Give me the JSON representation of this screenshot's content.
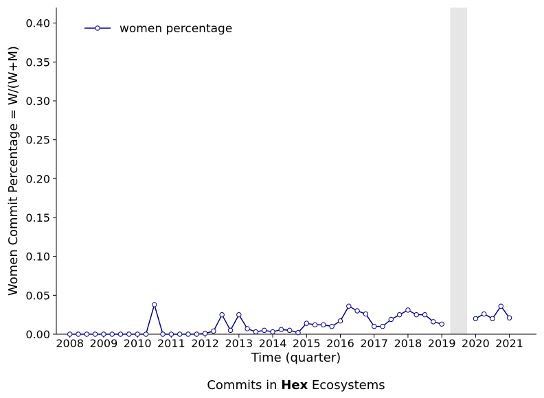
{
  "chart_data": {
    "type": "line",
    "title": "",
    "caption": {
      "prefix": "Commits in ",
      "bold": "Hex",
      "suffix": " Ecosystems"
    },
    "xlabel": "Time (quarter)",
    "ylabel": "Women Commit Percentage = W/(W+M)",
    "xlim": [
      2007.6,
      2021.8
    ],
    "ylim": [
      0.0,
      0.42
    ],
    "x_ticks": [
      2008,
      2009,
      2010,
      2011,
      2012,
      2013,
      2014,
      2015,
      2016,
      2017,
      2018,
      2019,
      2020,
      2021
    ],
    "x_tick_labels": [
      "2008",
      "2009",
      "2010",
      "2011",
      "2012",
      "2013",
      "2014",
      "2015",
      "2016",
      "2017",
      "2018",
      "2019",
      "2020",
      "2021"
    ],
    "y_ticks": [
      0.0,
      0.05,
      0.1,
      0.15,
      0.2,
      0.25,
      0.3,
      0.35,
      0.4
    ],
    "y_tick_labels": [
      "0.00",
      "0.05",
      "0.10",
      "0.15",
      "0.20",
      "0.25",
      "0.30",
      "0.35",
      "0.40"
    ],
    "grid": false,
    "legend": {
      "position": "top-left",
      "entries": [
        "women percentage"
      ]
    },
    "shaded_region": {
      "x_start": 2019.25,
      "x_end": 2019.75,
      "color": "#e6e6e6"
    },
    "series": [
      {
        "name": "women percentage",
        "color": "#00008b",
        "marker": "open-circle",
        "segments": [
          {
            "x": [
              2008.0,
              2008.25,
              2008.5,
              2008.75,
              2009.0,
              2009.25,
              2009.5,
              2009.75,
              2010.0,
              2010.25,
              2010.5,
              2010.75,
              2011.0,
              2011.25,
              2011.5,
              2011.75,
              2012.0,
              2012.25,
              2012.5,
              2012.75,
              2013.0,
              2013.25,
              2013.5,
              2013.75,
              2014.0,
              2014.25,
              2014.5,
              2014.75,
              2015.0,
              2015.25,
              2015.5,
              2015.75,
              2016.0,
              2016.25,
              2016.5,
              2016.75,
              2017.0,
              2017.25,
              2017.5,
              2017.75,
              2018.0,
              2018.25,
              2018.5,
              2018.75,
              2019.0
            ],
            "y": [
              0.0,
              0.0,
              0.0,
              0.0,
              0.0,
              0.0,
              0.0,
              0.0,
              0.0,
              0.0,
              0.038,
              0.0,
              0.0,
              0.0,
              0.0,
              0.0,
              0.001,
              0.004,
              0.025,
              0.005,
              0.025,
              0.007,
              0.003,
              0.005,
              0.003,
              0.006,
              0.005,
              0.002,
              0.014,
              0.012,
              0.012,
              0.01,
              0.017,
              0.036,
              0.03,
              0.026,
              0.01,
              0.01,
              0.019,
              0.025,
              0.031,
              0.025,
              0.025,
              0.016,
              0.013
            ]
          },
          {
            "x": [
              2020.0,
              2020.25,
              2020.5,
              2020.75,
              2021.0
            ],
            "y": [
              0.02,
              0.026,
              0.02,
              0.036,
              0.021
            ]
          }
        ]
      }
    ]
  }
}
